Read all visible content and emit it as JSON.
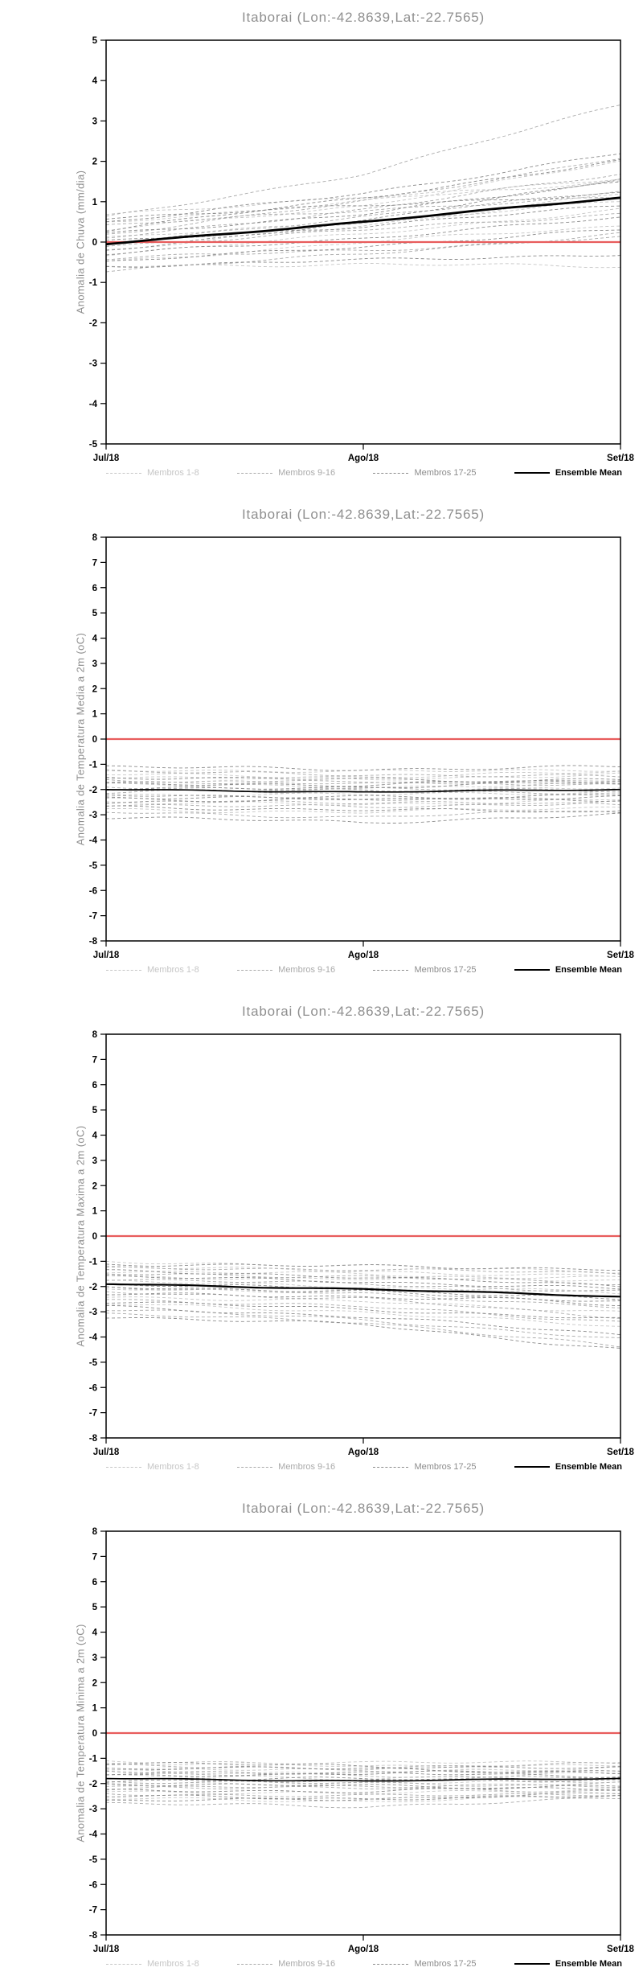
{
  "legend": {
    "items": [
      {
        "label": "Membros 1-8",
        "color": "#c6c6c6",
        "style": "dashed"
      },
      {
        "label": "Membros 9-16",
        "color": "#aaaaaa",
        "style": "dashed"
      },
      {
        "label": "Membros 17-25",
        "color": "#8c8c8c",
        "style": "dashed"
      },
      {
        "label": "Ensemble Mean",
        "color": "#000000",
        "style": "solid"
      }
    ]
  },
  "chart_data": [
    {
      "type": "line",
      "title": "Itaborai (Lon:-42.8639,Lat:-22.7565)",
      "ylabel": "Anomalia de Chuva (mm/dia)",
      "xlabel": "",
      "x_ticklabels": [
        "Jul/18",
        "Ago/18",
        "Set/18"
      ],
      "ylim": [
        -5,
        5
      ],
      "ytick_step": 1,
      "legend_position": "bottom",
      "grid": false,
      "zero_line": {
        "value": 0,
        "color": "#e85c5c"
      },
      "mean_width": 2.8,
      "members": [
        [
          0.5,
          1.0,
          1.6
        ],
        [
          -0.3,
          0.2,
          0.8
        ],
        [
          0.1,
          0.5,
          1.0
        ],
        [
          -0.6,
          -0.55,
          -0.6
        ],
        [
          0.7,
          1.1,
          1.5
        ],
        [
          -0.2,
          0.4,
          1.2
        ],
        [
          0.3,
          0.9,
          2.0
        ],
        [
          -0.5,
          0.0,
          0.4
        ],
        [
          0.2,
          1.0,
          2.1
        ],
        [
          -0.4,
          -0.2,
          0.1
        ],
        [
          0.6,
          1.7,
          3.4
        ],
        [
          0.0,
          0.6,
          1.3
        ],
        [
          -0.7,
          -0.3,
          0.2
        ],
        [
          0.4,
          0.8,
          1.1
        ],
        [
          0.1,
          0.8,
          1.7
        ],
        [
          -0.1,
          0.3,
          0.7
        ],
        [
          0.5,
          1.2,
          2.2
        ],
        [
          -0.3,
          0.1,
          0.6
        ],
        [
          0.2,
          0.7,
          1.5
        ],
        [
          -0.6,
          -0.45,
          -0.3
        ],
        [
          0.3,
          1.1,
          2.0
        ],
        [
          0.0,
          0.4,
          0.9
        ],
        [
          -0.2,
          0.5,
          1.6
        ],
        [
          0.6,
          0.9,
          1.2
        ],
        [
          -0.5,
          -0.1,
          0.3
        ]
      ],
      "ensemble_mean": [
        -0.05,
        0.5,
        1.1
      ]
    },
    {
      "type": "line",
      "title": "Itaborai (Lon:-42.8639,Lat:-22.7565)",
      "ylabel": "Anomalia de Temperatura Media a 2m (oC)",
      "xlabel": "",
      "x_ticklabels": [
        "Jul/18",
        "Ago/18",
        "Set/18"
      ],
      "ylim": [
        -8,
        8
      ],
      "ytick_step": 1,
      "legend_position": "bottom",
      "grid": false,
      "zero_line": {
        "value": 0,
        "color": "#e85c5c"
      },
      "mean_width": 1.7,
      "members": [
        [
          -1.2,
          -1.3,
          -1.2
        ],
        [
          -1.5,
          -1.6,
          -1.4
        ],
        [
          -1.8,
          -1.9,
          -1.8
        ],
        [
          -2.0,
          -2.1,
          -1.9
        ],
        [
          -2.2,
          -2.2,
          -2.1
        ],
        [
          -2.5,
          -2.6,
          -2.4
        ],
        [
          -1.4,
          -1.5,
          -1.3
        ],
        [
          -2.8,
          -2.9,
          -2.7
        ],
        [
          -1.6,
          -1.8,
          -1.6
        ],
        [
          -2.1,
          -2.0,
          -2.2
        ],
        [
          -2.4,
          -2.5,
          -2.6
        ],
        [
          -1.9,
          -2.0,
          -2.0
        ],
        [
          -2.6,
          -2.7,
          -2.5
        ],
        [
          -1.3,
          -1.4,
          -1.5
        ],
        [
          -2.9,
          -3.1,
          -2.8
        ],
        [
          -1.7,
          -1.7,
          -1.8
        ],
        [
          -2.3,
          -2.4,
          -2.2
        ],
        [
          -2.0,
          -1.9,
          -1.7
        ],
        [
          -2.7,
          -2.8,
          -2.9
        ],
        [
          -1.5,
          -1.6,
          -1.7
        ],
        [
          -3.1,
          -3.3,
          -3.0
        ],
        [
          -1.8,
          -1.8,
          -1.6
        ],
        [
          -2.2,
          -2.3,
          -2.4
        ],
        [
          -2.5,
          -2.4,
          -2.3
        ],
        [
          -1.1,
          -1.2,
          -1.1
        ]
      ],
      "ensemble_mean": [
        -2.0,
        -2.1,
        -2.0
      ]
    },
    {
      "type": "line",
      "title": "Itaborai (Lon:-42.8639,Lat:-22.7565)",
      "ylabel": "Anomalia de Temperatura Maxima a 2m (oC)",
      "xlabel": "",
      "x_ticklabels": [
        "Jul/18",
        "Ago/18",
        "Set/18"
      ],
      "ylim": [
        -8,
        8
      ],
      "ytick_step": 1,
      "legend_position": "bottom",
      "grid": false,
      "zero_line": {
        "value": 0,
        "color": "#e85c5c"
      },
      "mean_width": 2.2,
      "members": [
        [
          -1.0,
          -1.2,
          -1.4
        ],
        [
          -1.4,
          -1.5,
          -1.8
        ],
        [
          -1.8,
          -2.0,
          -2.3
        ],
        [
          -2.1,
          -2.2,
          -2.1
        ],
        [
          -2.4,
          -2.6,
          -3.0
        ],
        [
          -1.2,
          -1.4,
          -1.6
        ],
        [
          -2.7,
          -3.0,
          -3.6
        ],
        [
          -1.6,
          -1.7,
          -1.6
        ],
        [
          -2.0,
          -2.3,
          -2.8
        ],
        [
          -2.9,
          -3.3,
          -4.1
        ],
        [
          -1.3,
          -1.3,
          -1.5
        ],
        [
          -2.2,
          -2.5,
          -3.2
        ],
        [
          -1.7,
          -1.9,
          -2.2
        ],
        [
          -3.1,
          -3.4,
          -4.4
        ],
        [
          -1.5,
          -1.6,
          -1.9
        ],
        [
          -2.5,
          -2.8,
          -3.4
        ],
        [
          -1.9,
          -2.1,
          -2.5
        ],
        [
          -2.3,
          -2.4,
          -2.6
        ],
        [
          -2.8,
          -3.2,
          -3.9
        ],
        [
          -1.1,
          -1.2,
          -1.3
        ],
        [
          -2.6,
          -2.9,
          -3.3
        ],
        [
          -1.4,
          -1.6,
          -2.0
        ],
        [
          -2.0,
          -2.2,
          -2.7
        ],
        [
          -3.2,
          -3.5,
          -4.5
        ],
        [
          -1.6,
          -1.8,
          -2.1
        ]
      ],
      "ensemble_mean": [
        -1.9,
        -2.1,
        -2.4
      ]
    },
    {
      "type": "line",
      "title": "Itaborai (Lon:-42.8639,Lat:-22.7565)",
      "ylabel": "Anomalia de Temperatura Minima a 2m (oC)",
      "xlabel": "",
      "x_ticklabels": [
        "Jul/18",
        "Ago/18",
        "Set/18"
      ],
      "ylim": [
        -8,
        8
      ],
      "ytick_step": 1,
      "legend_position": "bottom",
      "grid": false,
      "zero_line": {
        "value": 0,
        "color": "#e85c5c"
      },
      "mean_width": 1.7,
      "members": [
        [
          -1.1,
          -1.2,
          -1.1
        ],
        [
          -1.4,
          -1.5,
          -1.4
        ],
        [
          -1.7,
          -1.8,
          -1.6
        ],
        [
          -2.0,
          -2.0,
          -1.9
        ],
        [
          -2.3,
          -2.4,
          -2.2
        ],
        [
          -1.2,
          -1.3,
          -1.3
        ],
        [
          -2.6,
          -2.7,
          -2.5
        ],
        [
          -1.5,
          -1.6,
          -1.5
        ],
        [
          -1.9,
          -2.0,
          -2.1
        ],
        [
          -2.2,
          -2.1,
          -2.0
        ],
        [
          -1.3,
          -1.4,
          -1.2
        ],
        [
          -2.4,
          -2.5,
          -2.4
        ],
        [
          -1.6,
          -1.7,
          -1.8
        ],
        [
          -2.8,
          -2.9,
          -2.6
        ],
        [
          -1.8,
          -1.9,
          -1.7
        ],
        [
          -2.1,
          -2.2,
          -2.3
        ],
        [
          -1.4,
          -1.4,
          -1.6
        ],
        [
          -2.5,
          -2.6,
          -2.5
        ],
        [
          -1.7,
          -1.6,
          -1.5
        ],
        [
          -2.0,
          -2.1,
          -2.2
        ],
        [
          -1.2,
          -1.3,
          -1.4
        ],
        [
          -2.3,
          -2.3,
          -2.1
        ],
        [
          -1.5,
          -1.6,
          -1.7
        ],
        [
          -1.9,
          -1.8,
          -1.9
        ],
        [
          -2.7,
          -2.6,
          -2.4
        ]
      ],
      "ensemble_mean": [
        -1.8,
        -1.9,
        -1.8
      ]
    }
  ]
}
